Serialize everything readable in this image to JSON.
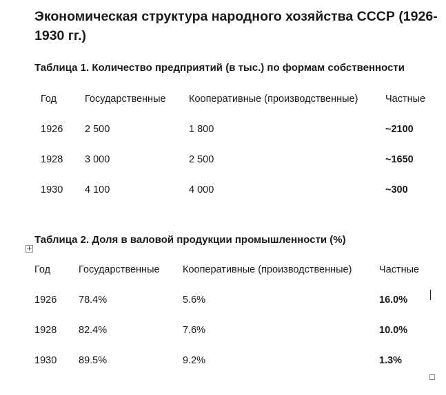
{
  "document": {
    "title": "Экономическая структура народного хозяйства СССР (1926-1930 гг.)"
  },
  "table1": {
    "caption": "Таблица 1. Количество предприятий (в тыс.) по формам собственности",
    "headers": [
      "Год",
      "Государственные",
      "Кооперативные (производственные)",
      "Частные"
    ],
    "rows": [
      [
        "1926",
        "2 500",
        "1 800",
        "~2100"
      ],
      [
        "1928",
        "3 000",
        "2 500",
        "~1650"
      ],
      [
        "1930",
        "4 100",
        "4 000",
        "~300"
      ]
    ]
  },
  "table2": {
    "caption": "Таблица 2. Доля в валовой продукции промышленности (%)",
    "headers": [
      "Год",
      "Государственные",
      "Кооперативные (производственные)",
      "Частные"
    ],
    "rows": [
      [
        "1926",
        "78.4%",
        "5.6%",
        "16.0%"
      ],
      [
        "1928",
        "82.4%",
        "7.6%",
        "10.0%"
      ],
      [
        "1930",
        "89.5%",
        "9.2%",
        "1.3%"
      ]
    ]
  },
  "icons": {
    "table_move_handle": "move-handle-icon",
    "table_resize_handle": "resize-handle-icon"
  }
}
